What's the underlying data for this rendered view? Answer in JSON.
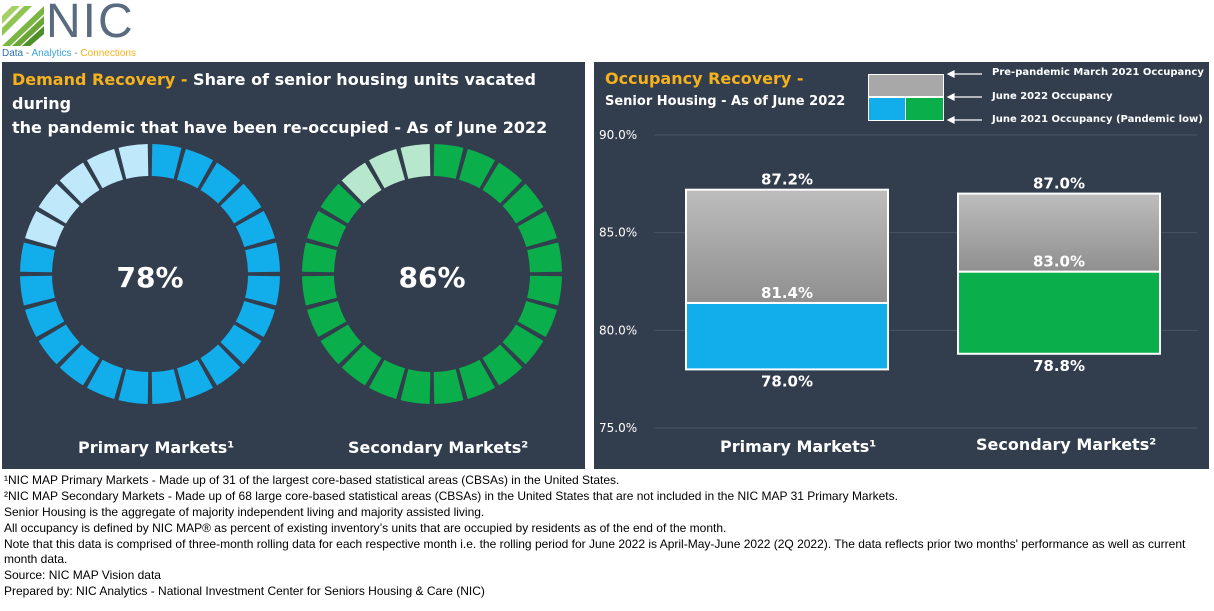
{
  "logo": {
    "name": "NIC",
    "tag_parts": [
      {
        "text": "Data",
        "color": "#2f6fb5"
      },
      {
        "text": " - ",
        "color": "#7a7a7a"
      },
      {
        "text": "Analytics",
        "color": "#3aa3d9"
      },
      {
        "text": " - ",
        "color": "#7a7a7a"
      },
      {
        "text": "Connections",
        "color": "#f5b21c"
      }
    ]
  },
  "left_panel": {
    "title_accent": "Demand Recovery -",
    "title_rest_1": " Share of senior housing units vacated during",
    "title_line2": "the pandemic that have been re-occupied - As of June 2022",
    "donut_primary_value": "78%",
    "donut_secondary_value": "86%",
    "primary_label": "Primary Markets¹",
    "secondary_label": "Secondary Markets²"
  },
  "right_panel": {
    "title_accent": "Occupancy Recovery -",
    "subtitle": "Senior Housing  - As of June 2022",
    "legend_prepandemic": "Pre-pandemic March  2021 Occupancy",
    "legend_june2022": "June 2022 Occupancy",
    "legend_june2021": "June 2021 Occupancy  (Pandemic low)",
    "primary_label": "Primary Markets¹",
    "secondary_label": "Secondary Markets²"
  },
  "colors": {
    "panel_bg": "#323d4e",
    "accent": "#f5b21c",
    "primary_blue": "#12aeec",
    "primary_blue_light": "#bfe9fb",
    "secondary_green": "#0aae4a",
    "secondary_green_light": "#b7e7cc"
  },
  "chart_data": [
    {
      "type": "pie",
      "subtype": "donut",
      "title": "Demand Recovery - Share of senior housing units vacated during the pandemic that have been re-occupied - As of June 2022",
      "series": [
        {
          "name": "Primary Markets¹",
          "value": 78,
          "label": "78%",
          "segments_total": 24,
          "segments_filled": 19
        },
        {
          "name": "Secondary Markets²",
          "value": 86,
          "label": "86%",
          "segments_total": 24,
          "segments_filled": 21
        }
      ]
    },
    {
      "type": "bar",
      "subtype": "floating-range",
      "title": "Occupancy Recovery - Senior Housing - As of June 2022",
      "categories": [
        "Primary Markets¹",
        "Secondary Markets²"
      ],
      "series": [
        {
          "name": "Pre-pandemic March  2021 Occupancy",
          "values": [
            87.2,
            87.0
          ],
          "labels": [
            "87.2%",
            "87.0%"
          ]
        },
        {
          "name": "June 2022 Occupancy",
          "values": [
            81.4,
            83.0
          ],
          "labels": [
            "81.4%",
            "83.0%"
          ]
        },
        {
          "name": "June 2021 Occupancy  (Pandemic low)",
          "values": [
            78.0,
            78.8
          ],
          "labels": [
            "78.0%",
            "78.8%"
          ]
        }
      ],
      "yticks": [
        "90.0%",
        "85.0%",
        "80.0%",
        "75.0%"
      ],
      "ytick_values": [
        90,
        85,
        80,
        75
      ],
      "ylim": [
        75,
        90
      ],
      "grid": true
    }
  ],
  "footnotes": [
    "¹NIC MAP Primary Markets - Made up of 31 of the largest core-based statistical areas (CBSAs) in the United States.",
    "²NIC MAP Secondary Markets - Made up of 68 large core-based statistical areas (CBSAs) in the United States that are not included in the NIC MAP 31 Primary Markets.",
    "Senior Housing is the aggregate of majority independent living and majority assisted living.",
    "All occupancy is defined by NIC MAP® as percent of existing inventory’s units that are occupied by residents as of the end of the month.",
    "Note that this data is comprised of three-month rolling data for each respective month i.e. the rolling period for June 2022 is April-May-June 2022 (2Q 2022). The data reflects prior two months' performance as well as current month data.",
    "Source: NIC MAP Vision data",
    "Prepared by: NIC Analytics - National Investment Center for Seniors Housing & Care (NIC)"
  ]
}
